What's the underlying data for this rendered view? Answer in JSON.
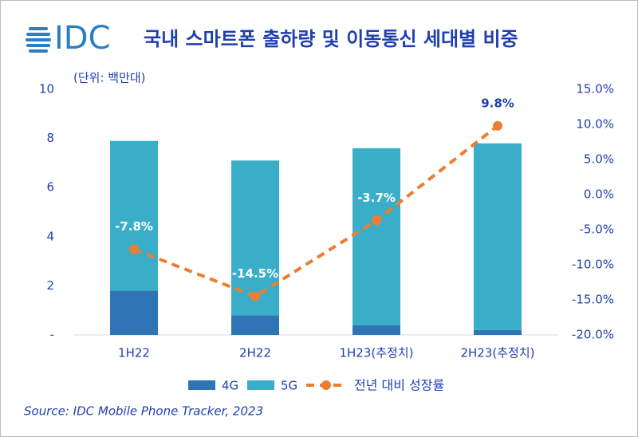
{
  "logo": "IDC",
  "chart_data": {
    "type": "bar",
    "title": "국내 스마트폰 출하량 및 이동통신 세대별 비중",
    "unit_label": "(단위: 백만대)",
    "source": "Source: IDC Mobile Phone Tracker, 2023",
    "categories": [
      "1H22",
      "2H22",
      "1H23(추정치)",
      "2H23(추정치)"
    ],
    "series": [
      {
        "name": "4G",
        "type": "bar",
        "color": "#2e75b6",
        "values": [
          1.8,
          0.8,
          0.4,
          0.2
        ]
      },
      {
        "name": "5G",
        "type": "bar",
        "color": "#3aaec8",
        "values": [
          6.1,
          6.3,
          7.2,
          7.6
        ]
      },
      {
        "name": "전년 대비 성장률",
        "type": "line",
        "axis": "y2",
        "color": "#ed7d31",
        "values": [
          -7.8,
          -14.5,
          -3.7,
          9.8
        ],
        "value_labels": [
          "-7.8%",
          "-14.5%",
          "-3.7%",
          "9.8%"
        ],
        "value_label_colors": [
          "#ffffff",
          "#ffffff",
          "#ffffff",
          "#1f3fae"
        ]
      }
    ],
    "stacked": true,
    "ylim": [
      0,
      10
    ],
    "yticks": [
      {
        "value": 0,
        "label": "-"
      },
      2,
      4,
      6,
      8,
      10
    ],
    "y2lim": [
      -20,
      15
    ],
    "y2ticks": [
      {
        "value": -20,
        "label": "-20.0%"
      },
      {
        "value": -15,
        "label": "-15.0%"
      },
      {
        "value": -10,
        "label": "-10.0%"
      },
      {
        "value": -5,
        "label": "-5.0%"
      },
      {
        "value": 0,
        "label": "0.0%"
      },
      {
        "value": 5,
        "label": "5.0%"
      },
      {
        "value": 10,
        "label": "10.0%"
      },
      {
        "value": 15,
        "label": "15.0%"
      }
    ]
  }
}
